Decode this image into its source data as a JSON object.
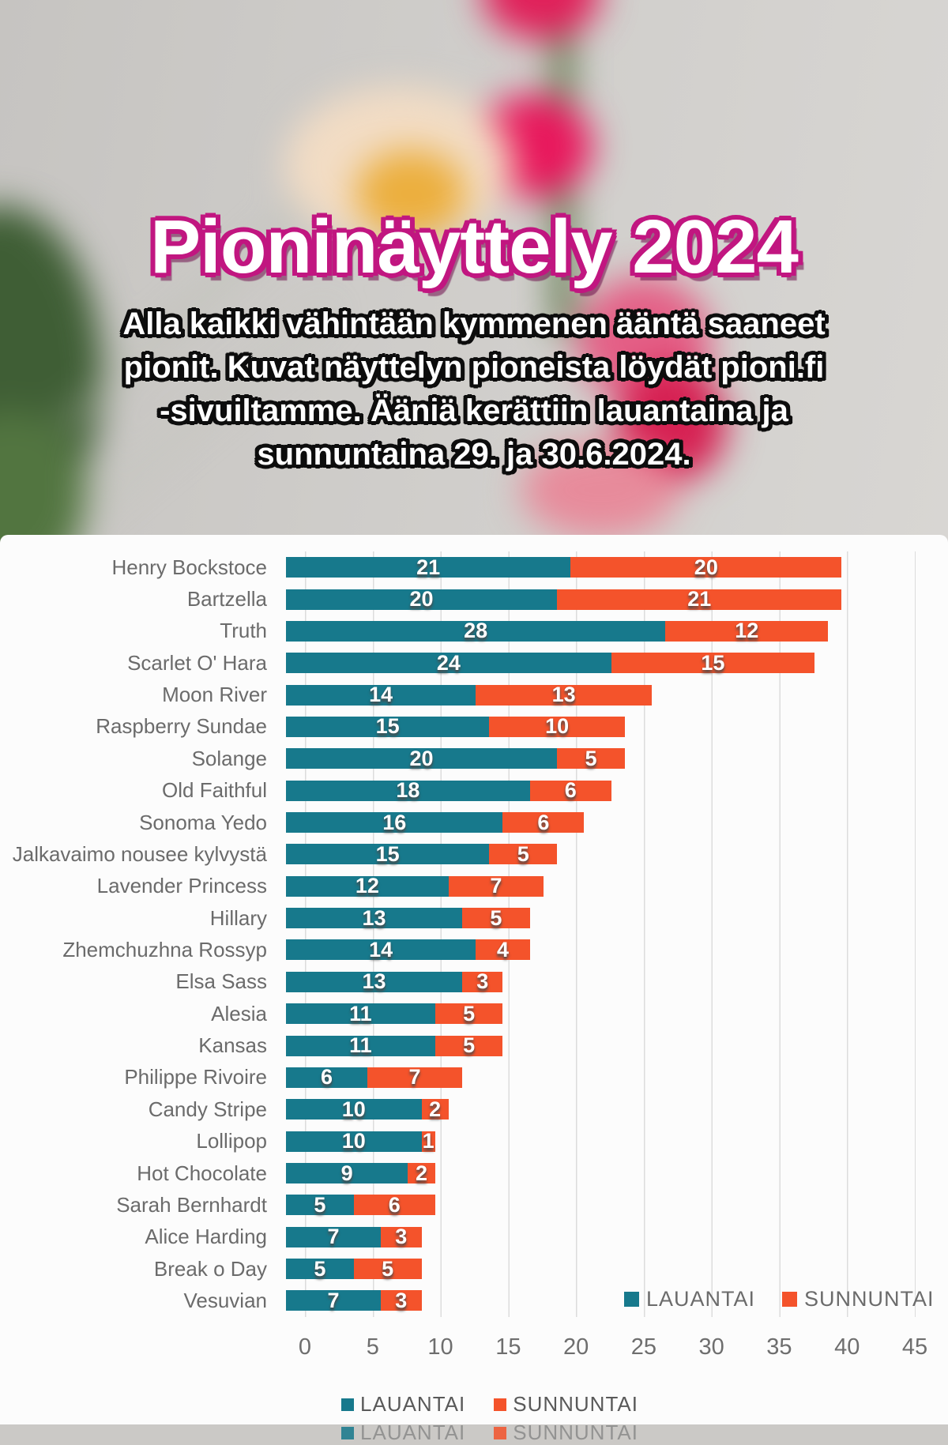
{
  "title": "Pioninäyttely 2024",
  "subtitle_lines": [
    "Alla kaikki vähintään kymmenen ääntä saaneet",
    "pionit. Kuvat näyttelyn pioneista löydät pioni.fi",
    "-sivuiltamme. Ääniä kerättiin lauantaina ja",
    "sunnuntaina 29. ja 30.6.2024."
  ],
  "colors": {
    "saturday": "#17798c",
    "sunday": "#f4532b",
    "title_outline": "#c11680",
    "panel_background": "#fcfcfc",
    "gridline": "#dcdcdc",
    "label_gray": "#6b6b6b"
  },
  "chart_data": {
    "type": "bar",
    "orientation": "horizontal",
    "stacked": true,
    "grid": true,
    "xlim": [
      0,
      45
    ],
    "x_ticks": [
      "0",
      "5",
      "10",
      "15",
      "20",
      "25",
      "30",
      "35",
      "40",
      "45"
    ],
    "categories": [
      "Henry Bockstoce",
      "Bartzella",
      "Truth",
      "Scarlet O' Hara",
      "Moon River",
      "Raspberry Sundae",
      "Solange",
      "Old Faithful",
      "Sonoma Yedo",
      "Jalkavaimo nousee kylvystä",
      "Lavender Princess",
      "Hillary",
      "Zhemchuzhna Rossyp",
      "Elsa Sass",
      "Alesia",
      "Kansas",
      "Philippe Rivoire",
      "Candy Stripe",
      "Lollipop",
      "Hot Chocolate",
      "Sarah Bernhardt",
      "Alice Harding",
      "Break o Day",
      "Vesuvian"
    ],
    "series": [
      {
        "name": "LAUANTAI",
        "color": "#17798c",
        "values": [
          21,
          20,
          28,
          24,
          14,
          15,
          20,
          18,
          16,
          15,
          12,
          13,
          14,
          13,
          11,
          11,
          6,
          10,
          10,
          9,
          5,
          7,
          5,
          7
        ]
      },
      {
        "name": "SUNNUNTAI",
        "color": "#f4532b",
        "values": [
          20,
          21,
          12,
          15,
          13,
          10,
          5,
          6,
          6,
          5,
          7,
          5,
          4,
          3,
          5,
          5,
          7,
          2,
          1,
          2,
          6,
          3,
          5,
          3
        ]
      }
    ],
    "legend_position": "inline-bottom-right and bottom-center"
  },
  "legend": {
    "items": [
      {
        "label": "LAUANTAI",
        "color": "#17798c"
      },
      {
        "label": "SUNNUNTAI",
        "color": "#f4532b"
      }
    ]
  }
}
